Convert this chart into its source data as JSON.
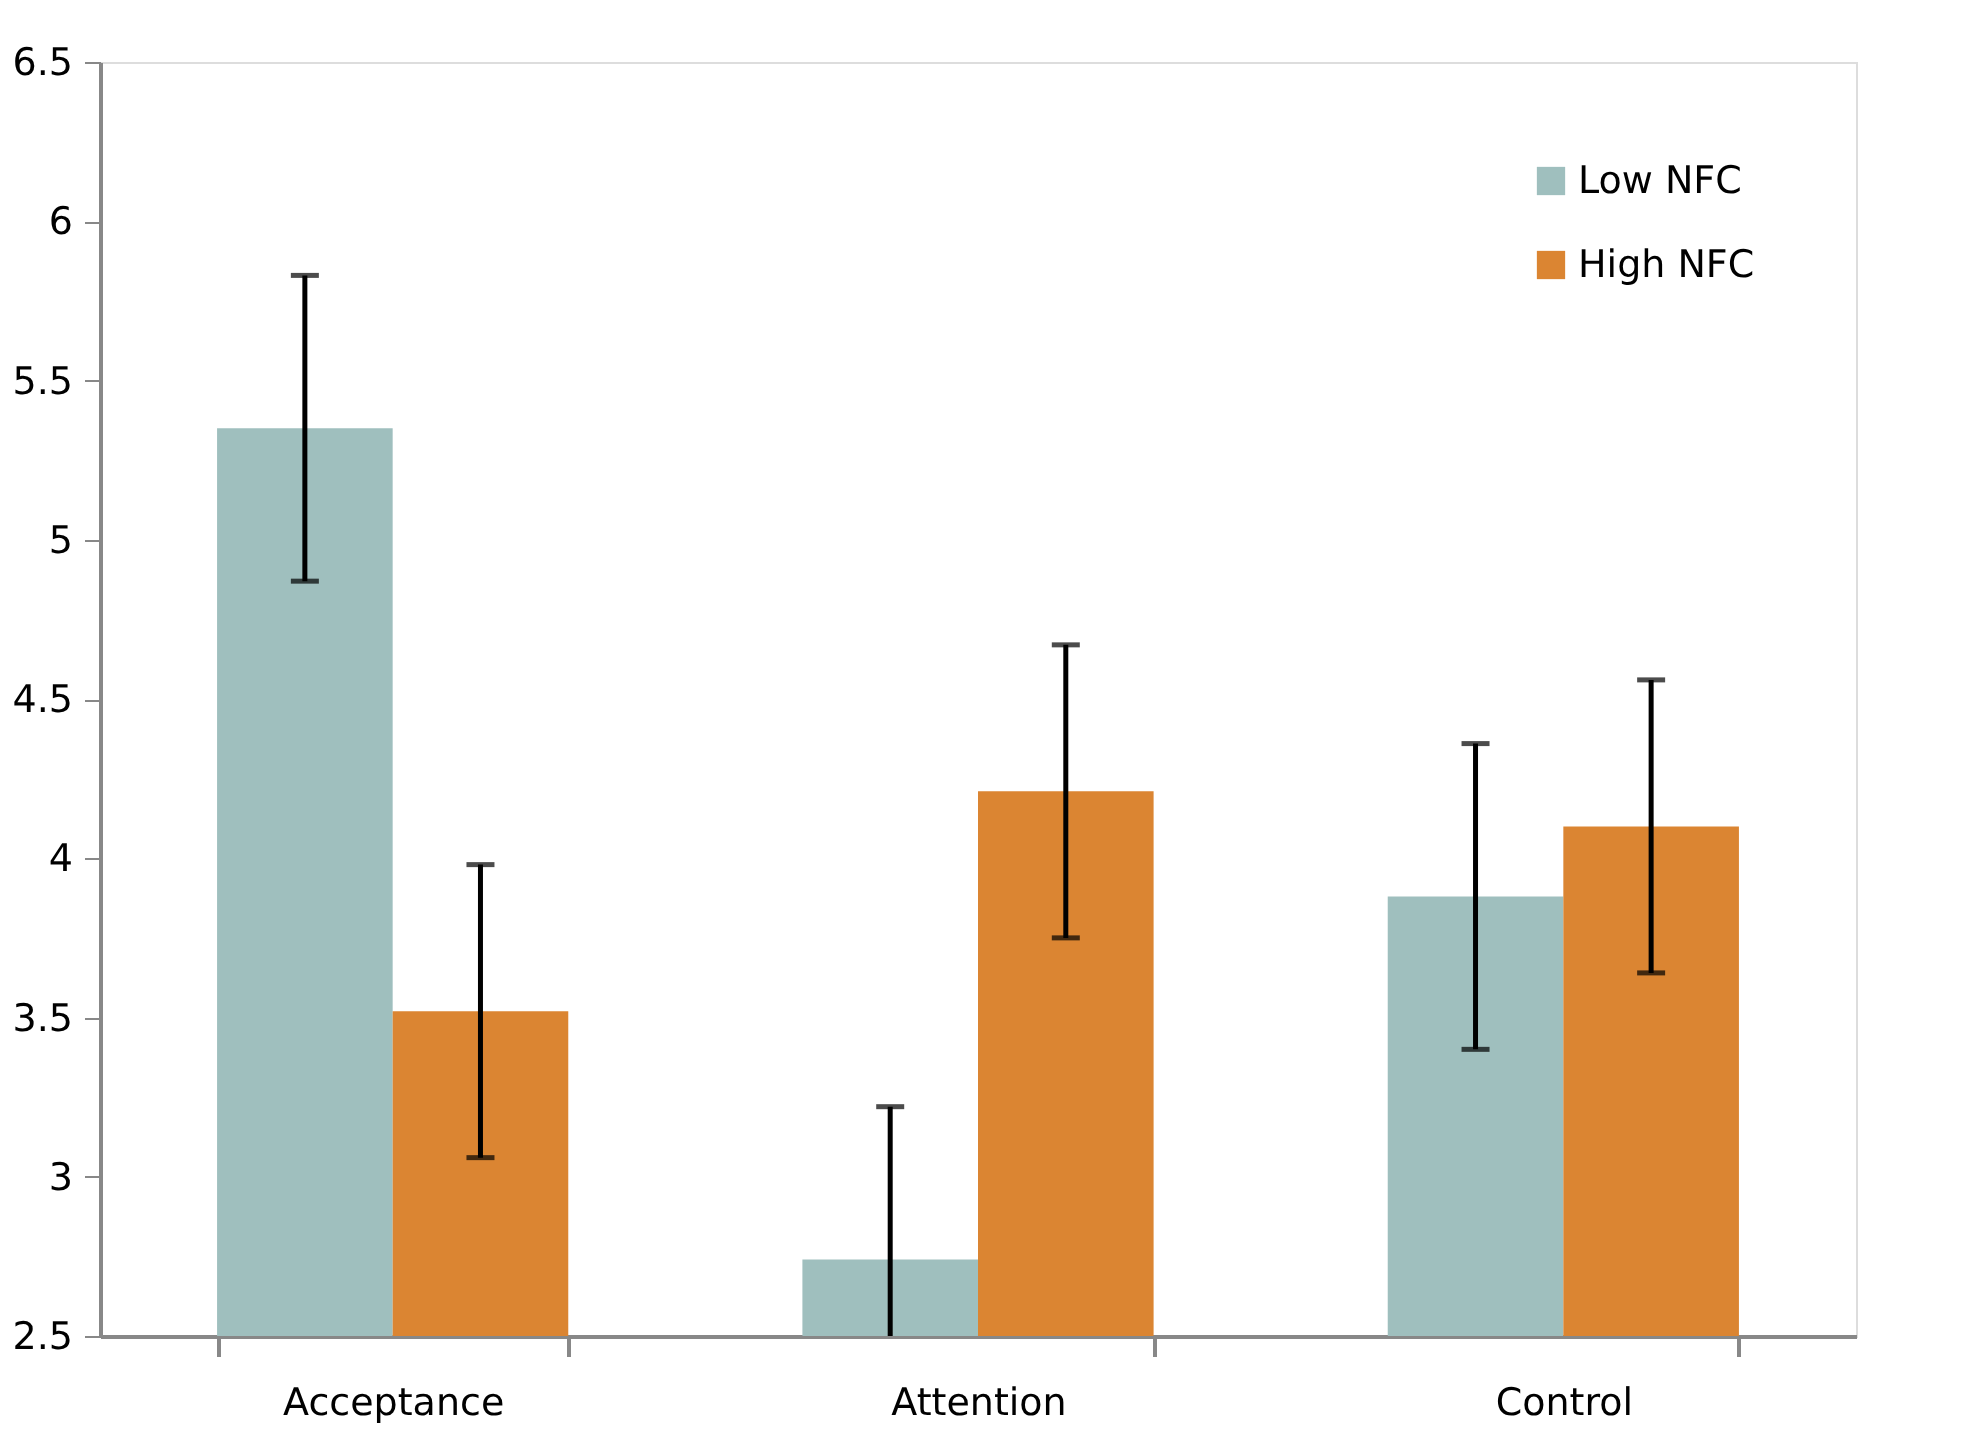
{
  "chart_data": {
    "type": "bar",
    "categories": [
      "Acceptance",
      "Attention",
      "Control"
    ],
    "series": [
      {
        "name": "Low NFC",
        "color": "#9fbfbe",
        "values": [
          5.35,
          2.74,
          3.88
        ],
        "errors": [
          0.48,
          [
            2.5,
            3.22
          ],
          0.48
        ]
      },
      {
        "name": "High NFC",
        "color": "#db8532",
        "values": [
          3.52,
          4.21,
          4.1
        ],
        "errors": [
          0.46,
          0.46,
          0.46
        ]
      }
    ],
    "ylim": [
      2.5,
      6.5
    ],
    "yticks": [
      2.5,
      3,
      3.5,
      4,
      4.5,
      5,
      5.5,
      6,
      6.5
    ],
    "grid": false,
    "legend": "top right"
  }
}
